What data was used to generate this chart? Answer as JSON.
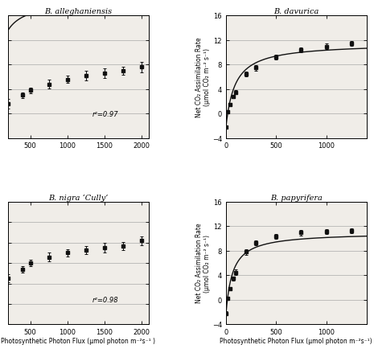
{
  "ylabel": "Net CO₂ Assimilation Rate\n(μmol CO₂ m⁻² s⁻¹)",
  "xlabel_left": "Photosynthetic Photon Flux (μmol photon m⁻²s⁻¹ )",
  "xlabel_right": "Photosynthetic Photon Flux (μmol photon m⁻²s⁻¹)",
  "bg_color": "#f0ede8",
  "line_color": "#111111",
  "marker_color": "#111111",
  "marker_size": 3.5,
  "panels": [
    {
      "title": "B. alleghaniensis",
      "x_data": [
        200,
        400,
        500,
        750,
        1000,
        1250,
        1500,
        1750,
        2000
      ],
      "y_data": [
        6.8,
        7.5,
        7.9,
        8.4,
        8.8,
        9.1,
        9.3,
        9.5,
        9.8
      ],
      "y_err": [
        0.4,
        0.25,
        0.25,
        0.35,
        0.3,
        0.4,
        0.4,
        0.3,
        0.45
      ],
      "xlim": [
        200,
        2100
      ],
      "xticks": [
        500,
        1000,
        1500,
        2000
      ],
      "ylim": [
        4,
        14
      ],
      "yticks": [
        4,
        6,
        8,
        10,
        12,
        14
      ],
      "show_yticklabels": false,
      "r2": "r²=0.97",
      "Amax": 10.8,
      "k_half": 60,
      "Rd": -4.5,
      "is_left": true,
      "is_bottom": false,
      "row": 0,
      "col": 0,
      "show_ylabel": false
    },
    {
      "title": "B. davurica",
      "x_data": [
        0,
        20,
        40,
        75,
        100,
        200,
        300,
        500,
        750,
        1000,
        1250
      ],
      "y_data": [
        -2.2,
        0.3,
        1.5,
        2.8,
        3.5,
        6.5,
        7.5,
        9.2,
        10.4,
        11.0,
        11.5
      ],
      "y_err": [
        0.3,
        0.2,
        0.25,
        0.3,
        0.35,
        0.4,
        0.45,
        0.4,
        0.4,
        0.45,
        0.4
      ],
      "xlim": [
        0,
        1400
      ],
      "xticks": [
        0,
        500,
        1000
      ],
      "ylim": [
        -4,
        16
      ],
      "yticks": [
        -4,
        0,
        4,
        8,
        12,
        16
      ],
      "show_yticklabels": true,
      "r2": "",
      "Amax": 13.8,
      "k_half": 90,
      "Rd": 2.3,
      "is_left": false,
      "is_bottom": false,
      "row": 0,
      "col": 1,
      "show_ylabel": true
    },
    {
      "title": "B. nigra ‘Cully’",
      "x_data": [
        200,
        400,
        500,
        750,
        1000,
        1250,
        1500,
        1750,
        2000
      ],
      "y_data": [
        10.5,
        11.4,
        12.0,
        12.6,
        13.0,
        13.3,
        13.5,
        13.7,
        14.2
      ],
      "y_err": [
        0.4,
        0.3,
        0.3,
        0.4,
        0.35,
        0.4,
        0.5,
        0.4,
        0.45
      ],
      "xlim": [
        200,
        2100
      ],
      "xticks": [
        500,
        1000,
        1500,
        2000
      ],
      "ylim": [
        6,
        18
      ],
      "yticks": [
        6,
        8,
        10,
        12,
        14,
        16,
        18
      ],
      "show_yticklabels": false,
      "r2": "r²=0.98",
      "Amax": 16.5,
      "k_half": 40,
      "Rd": -10.5,
      "is_left": true,
      "is_bottom": true,
      "row": 1,
      "col": 0,
      "show_ylabel": false
    },
    {
      "title": "B. papyrifera",
      "x_data": [
        0,
        20,
        40,
        75,
        100,
        200,
        300,
        500,
        750,
        1000,
        1250
      ],
      "y_data": [
        -2.2,
        0.3,
        1.8,
        3.5,
        4.5,
        7.8,
        9.3,
        10.3,
        11.0,
        11.2,
        11.3
      ],
      "y_err": [
        0.3,
        0.2,
        0.25,
        0.35,
        0.45,
        0.4,
        0.4,
        0.4,
        0.45,
        0.4,
        0.4
      ],
      "xlim": [
        0,
        1400
      ],
      "xticks": [
        0,
        500,
        1000
      ],
      "ylim": [
        -4,
        16
      ],
      "yticks": [
        -4,
        0,
        4,
        8,
        12,
        16
      ],
      "show_yticklabels": true,
      "r2": "",
      "Amax": 13.5,
      "k_half": 65,
      "Rd": 2.5,
      "is_left": false,
      "is_bottom": true,
      "row": 1,
      "col": 1,
      "show_ylabel": true
    }
  ]
}
